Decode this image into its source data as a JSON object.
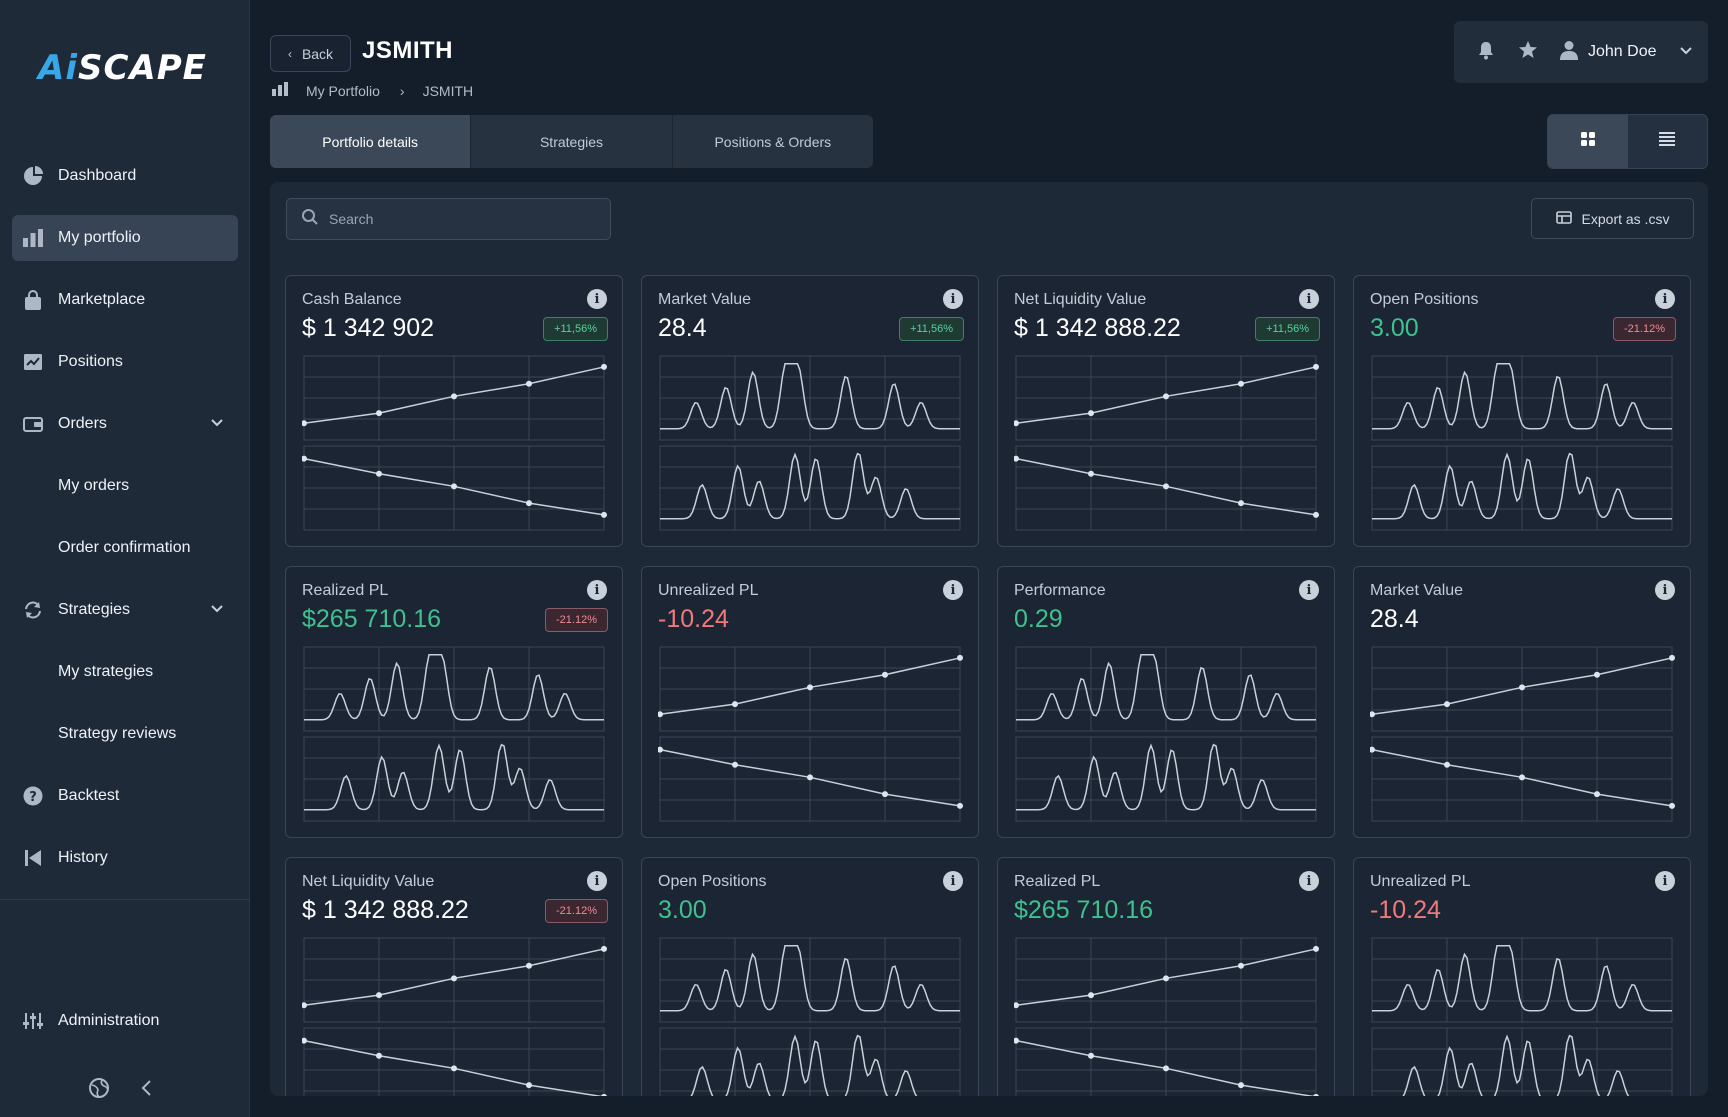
{
  "app": {
    "logo_text": "SCAPE",
    "logo_accent": "Ai"
  },
  "sidebar": {
    "items": [
      {
        "label": "Dashboard",
        "icon": "pie-chart-icon"
      },
      {
        "label": "My portfolio",
        "icon": "bar-chart-icon",
        "active": true
      },
      {
        "label": "Marketplace",
        "icon": "shopping-bag-icon"
      },
      {
        "label": "Positions",
        "icon": "chart-check-icon"
      },
      {
        "label": "Orders",
        "icon": "wallet-icon",
        "expandable": true
      },
      {
        "label": "My orders",
        "sub": true
      },
      {
        "label": "Order confirmation",
        "sub": true
      },
      {
        "label": "Strategies",
        "icon": "refresh-icon",
        "expandable": true
      },
      {
        "label": "My strategies",
        "sub": true
      },
      {
        "label": "Strategy reviews",
        "sub": true
      },
      {
        "label": "Backtest",
        "icon": "question-icon"
      },
      {
        "label": "History",
        "icon": "skip-back-icon"
      }
    ],
    "admin_label": "Administration"
  },
  "header": {
    "back_label": "Back",
    "title": "JSMITH",
    "breadcrumb": [
      "My Portfolio",
      "JSMITH"
    ],
    "user_name": "John Doe"
  },
  "tabs": [
    "Portfolio details",
    "Strategies",
    "Positions & Orders"
  ],
  "toolbar": {
    "search_placeholder": "Search",
    "export_label": "Export as .csv"
  },
  "colors": {
    "positive": "#3fc18f",
    "negative": "#f07a7a",
    "accent": "#37a7e8"
  },
  "cards": [
    {
      "title": "Cash Balance",
      "value": "$ 1 342 902",
      "tone": "",
      "badge": "+11,56%",
      "badge_dir": "up",
      "chart": "lines"
    },
    {
      "title": "Market Value",
      "value": "28.4",
      "tone": "",
      "badge": "+11,56%",
      "badge_dir": "up",
      "chart": "wave"
    },
    {
      "title": "Net Liquidity Value",
      "value": "$ 1 342 888.22",
      "tone": "",
      "badge": "+11,56%",
      "badge_dir": "up",
      "chart": "lines"
    },
    {
      "title": "Open Positions",
      "value": "3.00",
      "tone": "pos",
      "badge": "-21.12%",
      "badge_dir": "down",
      "chart": "wave"
    },
    {
      "title": "Realized PL",
      "value": "$265 710.16",
      "tone": "pos",
      "badge": "-21.12%",
      "badge_dir": "down",
      "chart": "wave"
    },
    {
      "title": "Unrealized PL",
      "value": "-10.24",
      "tone": "neg",
      "badge": "",
      "badge_dir": "",
      "chart": "lines"
    },
    {
      "title": "Performance",
      "value": "0.29",
      "tone": "pos",
      "badge": "",
      "badge_dir": "",
      "chart": "wave"
    },
    {
      "title": "Market Value",
      "value": "28.4",
      "tone": "",
      "badge": "",
      "badge_dir": "",
      "chart": "lines"
    },
    {
      "title": "Net Liquidity Value",
      "value": "$ 1 342 888.22",
      "tone": "",
      "badge": "-21.12%",
      "badge_dir": "down",
      "chart": "lines"
    },
    {
      "title": "Open Positions",
      "value": "3.00",
      "tone": "pos",
      "badge": "",
      "badge_dir": "",
      "chart": "wave"
    },
    {
      "title": "Realized PL",
      "value": "$265 710.16",
      "tone": "pos",
      "badge": "",
      "badge_dir": "",
      "chart": "lines"
    },
    {
      "title": "Unrealized PL",
      "value": "-10.24",
      "tone": "neg",
      "badge": "",
      "badge_dir": "",
      "chart": "wave"
    }
  ]
}
